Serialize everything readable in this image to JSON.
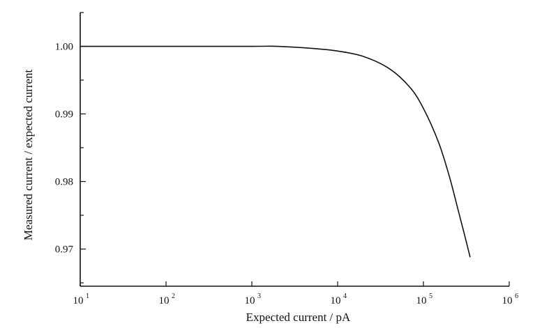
{
  "chart_data": {
    "type": "line",
    "title": "",
    "xlabel": "Expected current / pA",
    "ylabel": "Measured current / expected current",
    "xscale": "log",
    "xlim": [
      10,
      1000000
    ],
    "ylim": [
      0.9645,
      1.005
    ],
    "grid": false,
    "legend": "none",
    "x_ticks": [
      {
        "value": 10,
        "base": "10",
        "exp": "1"
      },
      {
        "value": 100,
        "base": "10",
        "exp": "2"
      },
      {
        "value": 1000,
        "base": "10",
        "exp": "3"
      },
      {
        "value": 10000,
        "base": "10",
        "exp": "4"
      },
      {
        "value": 100000,
        "base": "10",
        "exp": "5"
      },
      {
        "value": 1000000,
        "base": "10",
        "exp": "6"
      }
    ],
    "y_ticks": [
      {
        "value": 1.0,
        "label": "1.00"
      },
      {
        "value": 0.99,
        "label": "0.99"
      },
      {
        "value": 0.98,
        "label": "0.98"
      },
      {
        "value": 0.97,
        "label": "0.97"
      }
    ],
    "y_minor_ticks": [
      1.005,
      0.995,
      0.985,
      0.975,
      0.965
    ],
    "series": [
      {
        "x": [
          10,
          100,
          1000,
          2000,
          5000,
          10000,
          20000,
          40000,
          70000,
          100000,
          150000,
          200000,
          250000,
          300000,
          350000
        ],
        "y": [
          1.0,
          1.0,
          1.0,
          1.0,
          0.9997,
          0.9993,
          0.9985,
          0.9967,
          0.9939,
          0.9908,
          0.9858,
          0.9808,
          0.9761,
          0.9722,
          0.9688
        ]
      }
    ]
  }
}
